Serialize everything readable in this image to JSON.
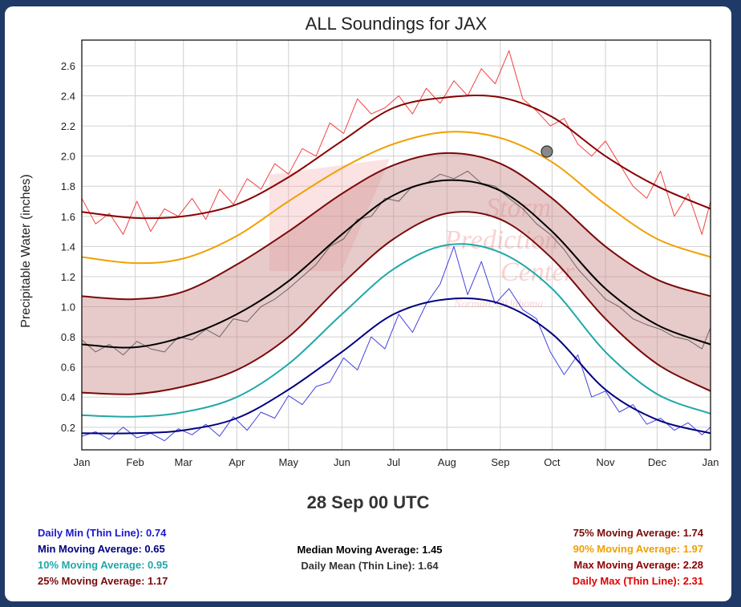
{
  "chart_data": {
    "type": "line",
    "title": "ALL Soundings for JAX",
    "ylabel": "Precipitable Water (inches)",
    "xlabel": "",
    "months": [
      "Jan",
      "Feb",
      "Mar",
      "Apr",
      "May",
      "Jun",
      "Jul",
      "Aug",
      "Sep",
      "Oct",
      "Nov",
      "Dec",
      "Jan"
    ],
    "y_ticks": [
      0.2,
      0.4,
      0.6,
      0.8,
      1.0,
      1.2,
      1.4,
      1.6,
      1.8,
      2.0,
      2.2,
      2.4,
      2.6
    ],
    "ylim": [
      0.05,
      2.77
    ],
    "grid": true,
    "series": [
      {
        "name": "Min Moving Average",
        "color": "#000080",
        "style": "smooth",
        "x": [
          1,
          31,
          60,
          91,
          121,
          152,
          182,
          213,
          244,
          274,
          305,
          335,
          366
        ],
        "values": [
          0.16,
          0.16,
          0.18,
          0.26,
          0.45,
          0.7,
          0.95,
          1.05,
          1.02,
          0.82,
          0.45,
          0.25,
          0.16
        ]
      },
      {
        "name": "10% Moving Average",
        "color": "#20a8a8",
        "style": "smooth",
        "x": [
          1,
          31,
          60,
          91,
          121,
          152,
          182,
          213,
          244,
          274,
          305,
          335,
          366
        ],
        "values": [
          0.28,
          0.27,
          0.3,
          0.4,
          0.62,
          0.95,
          1.25,
          1.41,
          1.36,
          1.12,
          0.7,
          0.42,
          0.29
        ]
      },
      {
        "name": "25% Moving Average",
        "color": "#7a0a0a",
        "style": "smooth",
        "x": [
          1,
          31,
          60,
          91,
          121,
          152,
          182,
          213,
          244,
          274,
          305,
          335,
          366
        ],
        "values": [
          0.43,
          0.42,
          0.47,
          0.58,
          0.8,
          1.15,
          1.45,
          1.62,
          1.58,
          1.32,
          0.92,
          0.62,
          0.44
        ]
      },
      {
        "name": "Median Moving Average",
        "color": "#000000",
        "style": "smooth",
        "x": [
          1,
          31,
          60,
          91,
          121,
          152,
          182,
          213,
          244,
          274,
          305,
          335,
          366
        ],
        "values": [
          0.75,
          0.73,
          0.8,
          0.95,
          1.17,
          1.48,
          1.74,
          1.84,
          1.77,
          1.5,
          1.12,
          0.88,
          0.75
        ]
      },
      {
        "name": "75% Moving Average",
        "color": "#7a0a0a",
        "style": "smooth",
        "x": [
          1,
          31,
          60,
          91,
          121,
          152,
          182,
          213,
          244,
          274,
          305,
          335,
          366
        ],
        "values": [
          1.07,
          1.05,
          1.1,
          1.28,
          1.5,
          1.75,
          1.94,
          2.02,
          1.95,
          1.72,
          1.4,
          1.18,
          1.07
        ]
      },
      {
        "name": "90% Moving Average",
        "color": "#f0a000",
        "style": "smooth",
        "x": [
          1,
          31,
          60,
          91,
          121,
          152,
          182,
          213,
          244,
          274,
          305,
          335,
          366
        ],
        "values": [
          1.33,
          1.29,
          1.32,
          1.47,
          1.7,
          1.92,
          2.08,
          2.16,
          2.12,
          1.96,
          1.68,
          1.45,
          1.33
        ]
      },
      {
        "name": "Max Moving Average",
        "color": "#8b0000",
        "style": "smooth",
        "x": [
          1,
          31,
          60,
          91,
          121,
          152,
          182,
          213,
          244,
          274,
          305,
          335,
          366
        ],
        "values": [
          1.63,
          1.59,
          1.6,
          1.68,
          1.86,
          2.1,
          2.32,
          2.39,
          2.39,
          2.26,
          2.0,
          1.8,
          1.65
        ]
      },
      {
        "name": "Daily Min (Thin Line)",
        "color": "#2222dd",
        "style": "thin",
        "x": [
          1,
          9,
          17,
          25,
          33,
          41,
          49,
          57,
          65,
          73,
          81,
          89,
          97,
          105,
          113,
          121,
          129,
          137,
          145,
          153,
          161,
          169,
          177,
          185,
          193,
          201,
          209,
          217,
          225,
          233,
          241,
          249,
          257,
          265,
          273,
          281,
          289,
          297,
          305,
          313,
          321,
          329,
          337,
          345,
          353,
          361,
          366
        ],
        "values": [
          0.14,
          0.17,
          0.12,
          0.2,
          0.13,
          0.16,
          0.11,
          0.19,
          0.15,
          0.22,
          0.14,
          0.27,
          0.18,
          0.3,
          0.26,
          0.41,
          0.35,
          0.47,
          0.5,
          0.66,
          0.58,
          0.8,
          0.72,
          0.95,
          0.83,
          1.02,
          1.15,
          1.4,
          1.08,
          1.3,
          1.02,
          1.12,
          0.98,
          0.92,
          0.7,
          0.55,
          0.68,
          0.4,
          0.44,
          0.3,
          0.35,
          0.22,
          0.26,
          0.18,
          0.23,
          0.15,
          0.2
        ]
      },
      {
        "name": "Daily Mean (Thin Line)",
        "color": "#555555",
        "style": "thin",
        "x": [
          1,
          9,
          17,
          25,
          33,
          41,
          49,
          57,
          65,
          73,
          81,
          89,
          97,
          105,
          113,
          121,
          129,
          137,
          145,
          153,
          161,
          169,
          177,
          185,
          193,
          201,
          209,
          217,
          225,
          233,
          241,
          249,
          257,
          265,
          273,
          281,
          289,
          297,
          305,
          313,
          321,
          329,
          337,
          345,
          353,
          361,
          366
        ],
        "values": [
          0.78,
          0.7,
          0.75,
          0.68,
          0.77,
          0.72,
          0.7,
          0.8,
          0.78,
          0.85,
          0.8,
          0.92,
          0.9,
          1.0,
          1.05,
          1.12,
          1.2,
          1.28,
          1.4,
          1.45,
          1.58,
          1.6,
          1.72,
          1.7,
          1.8,
          1.82,
          1.88,
          1.85,
          1.9,
          1.82,
          1.8,
          1.72,
          1.65,
          1.55,
          1.48,
          1.38,
          1.25,
          1.15,
          1.05,
          1.0,
          0.92,
          0.88,
          0.85,
          0.8,
          0.78,
          0.72,
          0.86
        ]
      },
      {
        "name": "Daily Max (Thin Line)",
        "color": "#ee2222",
        "style": "thin",
        "x": [
          1,
          9,
          17,
          25,
          33,
          41,
          49,
          57,
          65,
          73,
          81,
          89,
          97,
          105,
          113,
          121,
          129,
          137,
          145,
          153,
          161,
          169,
          177,
          185,
          193,
          201,
          209,
          217,
          225,
          233,
          241,
          249,
          257,
          265,
          273,
          281,
          289,
          297,
          305,
          313,
          321,
          329,
          337,
          345,
          353,
          361,
          366
        ],
        "values": [
          1.72,
          1.55,
          1.62,
          1.48,
          1.7,
          1.5,
          1.65,
          1.6,
          1.72,
          1.58,
          1.78,
          1.68,
          1.85,
          1.78,
          1.95,
          1.88,
          2.05,
          2.0,
          2.22,
          2.15,
          2.38,
          2.28,
          2.32,
          2.4,
          2.28,
          2.45,
          2.35,
          2.5,
          2.4,
          2.58,
          2.48,
          2.7,
          2.38,
          2.3,
          2.2,
          2.25,
          2.08,
          2.0,
          2.1,
          1.95,
          1.8,
          1.72,
          1.9,
          1.6,
          1.75,
          1.48,
          1.7
        ]
      }
    ],
    "band": {
      "lower_series": "25% Moving Average",
      "upper_series": "75% Moving Average",
      "color": "#c98a8a"
    },
    "marker": {
      "x": 271,
      "value": 2.03,
      "color": "#888888"
    }
  },
  "date_label": "28 Sep 00 UTC",
  "stats": {
    "daily_min": "Daily Min (Thin Line): 0.74",
    "min_ma": "Min Moving Average: 0.65",
    "p10_ma": "10% Moving Average: 0.95",
    "p25_ma": "25% Moving Average: 1.17",
    "median_ma": "Median Moving Average: 1.45",
    "daily_mean": "Daily Mean (Thin Line): 1.64",
    "p75_ma": "75% Moving Average: 1.74",
    "p90_ma": "90% Moving Average: 1.97",
    "max_ma": "Max Moving Average: 2.28",
    "daily_max": "Daily Max (Thin Line): 2.31"
  },
  "watermark": {
    "line1": "Storm",
    "line2": "Prediction",
    "line3": "Center",
    "line4": "Norman, Oklahoma"
  },
  "colors": {
    "daily_min": "#1a1acc",
    "min_ma": "#000080",
    "p10_ma": "#20a8a8",
    "p25_ma": "#7a0a0a",
    "median_ma": "#000000",
    "daily_mean": "#333333",
    "p75_ma": "#7a0a0a",
    "p90_ma": "#f0a000",
    "max_ma": "#8b0000",
    "daily_max": "#e00000",
    "background": "#1f3a66"
  }
}
